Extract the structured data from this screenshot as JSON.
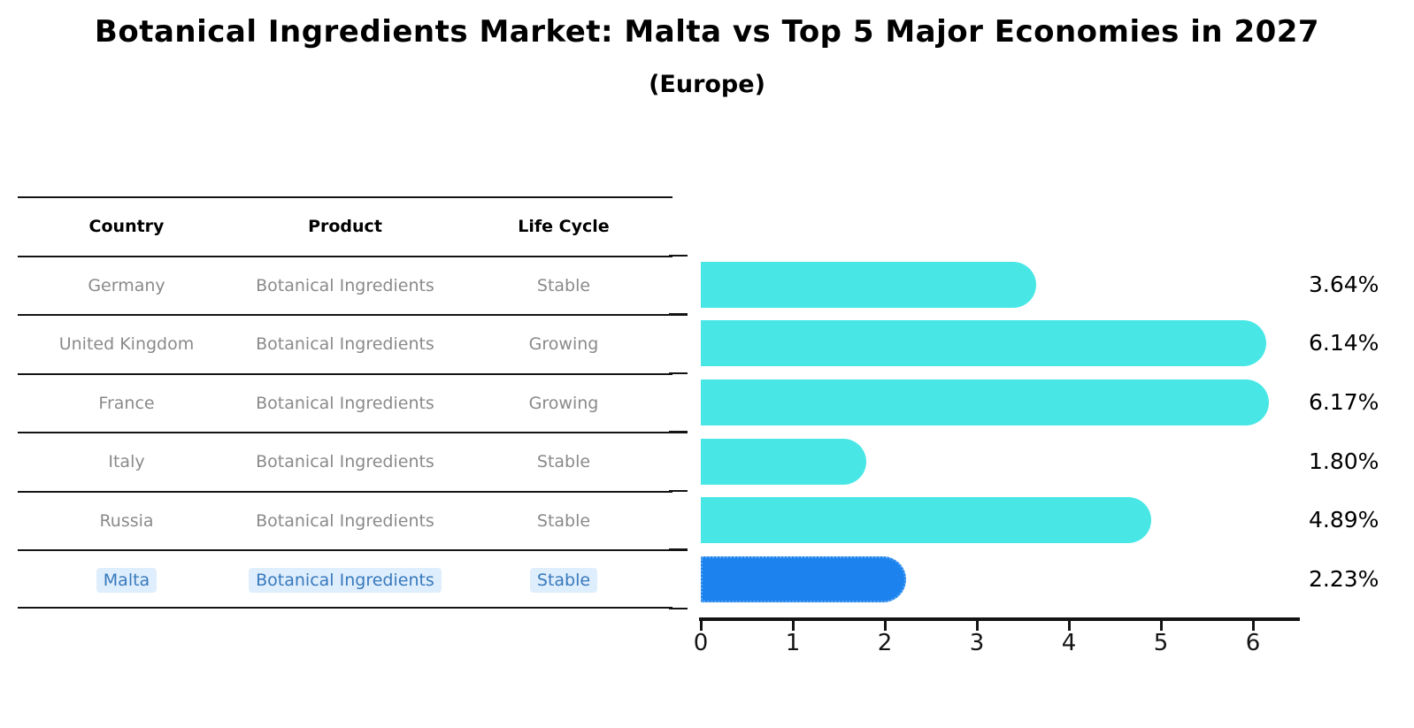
{
  "header": {
    "title": "Botanical Ingredients Market: Malta vs Top 5 Major Economies in 2027",
    "subtitle": "(Europe)"
  },
  "table": {
    "columns": [
      "Country",
      "Product",
      "Life Cycle"
    ],
    "rows": [
      {
        "country": "Germany",
        "product": "Botanical Ingredients",
        "life_cycle": "Stable",
        "highlight": false
      },
      {
        "country": "United Kingdom",
        "product": "Botanical Ingredients",
        "life_cycle": "Growing",
        "highlight": false
      },
      {
        "country": "France",
        "product": "Botanical Ingredients",
        "life_cycle": "Growing",
        "highlight": false
      },
      {
        "country": "Italy",
        "product": "Botanical Ingredients",
        "life_cycle": "Stable",
        "highlight": false
      },
      {
        "country": "Russia",
        "product": "Botanical Ingredients",
        "life_cycle": "Stable",
        "highlight": true
      },
      {
        "country": "Malta",
        "product": "Botanical Ingredients",
        "life_cycle": "Stable",
        "highlight": true
      }
    ]
  },
  "chart_data": {
    "type": "bar",
    "orientation": "horizontal",
    "title": "Botanical Ingredients Market: Malta vs Top 5 Major Economies in 2027",
    "subtitle": "(Europe)",
    "categories": [
      "Germany",
      "United Kingdom",
      "France",
      "Italy",
      "Russia",
      "Malta"
    ],
    "values": [
      3.64,
      6.14,
      6.17,
      1.8,
      4.89,
      2.23
    ],
    "value_labels": [
      "3.64%",
      "6.14%",
      "6.17%",
      "1.80%",
      "4.89%",
      "2.23%"
    ],
    "highlight_index": 5,
    "xlim": [
      0,
      6.5
    ],
    "x_ticks": [
      "0",
      "1",
      "2",
      "3",
      "4",
      "5",
      "6"
    ],
    "grid": false,
    "legend": "none",
    "bar_color": "#48e7e6",
    "highlight_bar_color": "#1c83ee",
    "highlight_text_color": "#3779be"
  }
}
